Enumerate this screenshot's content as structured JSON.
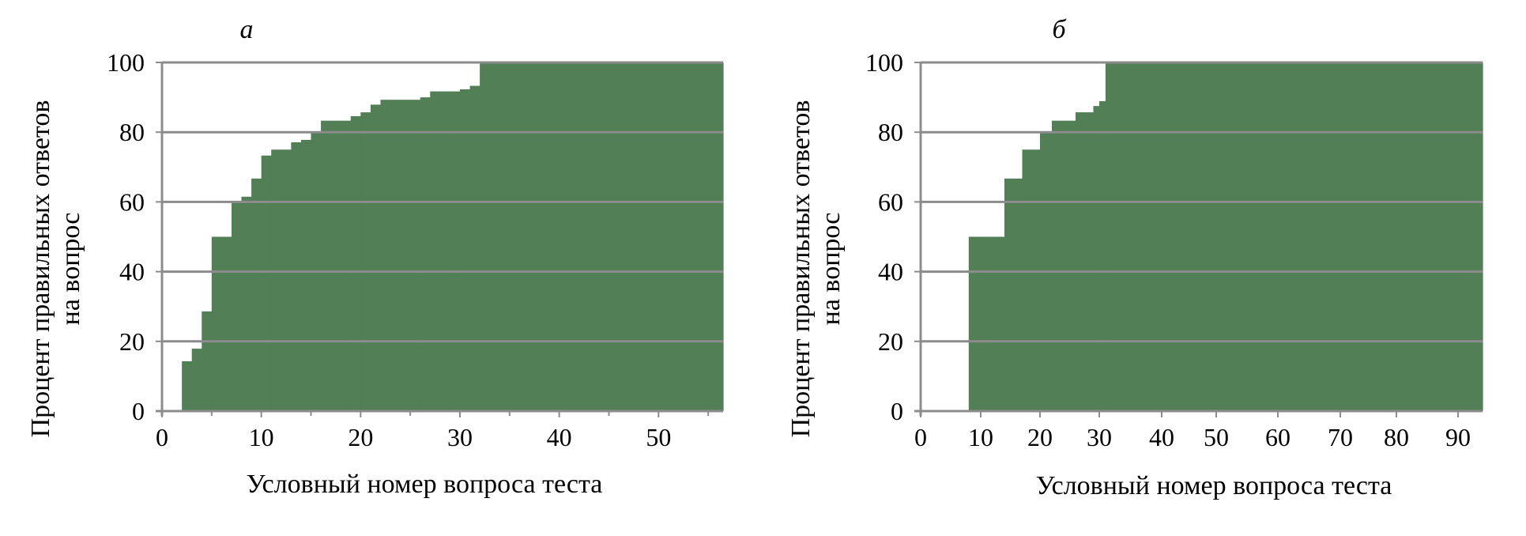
{
  "colors": {
    "fill": "#527f56",
    "grid": "#8c8c8c",
    "axis": "#8c8c8c",
    "text": "#000000"
  },
  "chart_data": [
    {
      "panel": "а",
      "type": "area",
      "step": true,
      "title": "а",
      "xlabel": "Условный номер вопроса теста",
      "ylabel_lines": [
        "Процент правильных ответов",
        "на вопрос"
      ],
      "xlim": [
        0,
        56.5
      ],
      "ylim": [
        0,
        100
      ],
      "xticks": [
        0,
        10,
        20,
        30,
        40,
        50
      ],
      "minor_xticks": [
        5,
        15,
        25,
        35,
        45,
        55
      ],
      "yticks": [
        0,
        20,
        40,
        60,
        80,
        100
      ],
      "grid": true,
      "x": [
        2,
        3,
        4,
        5,
        7,
        8,
        9,
        10,
        11,
        13,
        14,
        15,
        16,
        19,
        20,
        21,
        22,
        26,
        27,
        29,
        30,
        31,
        32,
        56.5
      ],
      "y": [
        14.3,
        17.9,
        28.6,
        50,
        60,
        61.5,
        66.7,
        73.3,
        75,
        77.1,
        77.8,
        80,
        83.3,
        84.6,
        85.7,
        87.9,
        89.3,
        90,
        91.7,
        91.7,
        92.3,
        93.3,
        100,
        100
      ]
    },
    {
      "panel": "б",
      "type": "area",
      "step": true,
      "title": "б",
      "xlabel": "Условный номер вопроса теста",
      "ylabel_lines": [
        "Процент правильных ответов",
        "на вопрос"
      ],
      "ylim": [
        0,
        100
      ],
      "xticks": [
        0,
        10,
        20,
        30,
        40,
        50,
        60,
        70,
        80,
        90
      ],
      "yticks": [
        0,
        20,
        40,
        60,
        80,
        100
      ],
      "grid": true,
      "x": [
        8,
        14,
        17,
        20,
        22,
        26,
        29,
        30,
        31,
        94
      ],
      "y": [
        50,
        66.7,
        75,
        80,
        83.3,
        85.7,
        87.5,
        88.9,
        100,
        100
      ]
    }
  ]
}
